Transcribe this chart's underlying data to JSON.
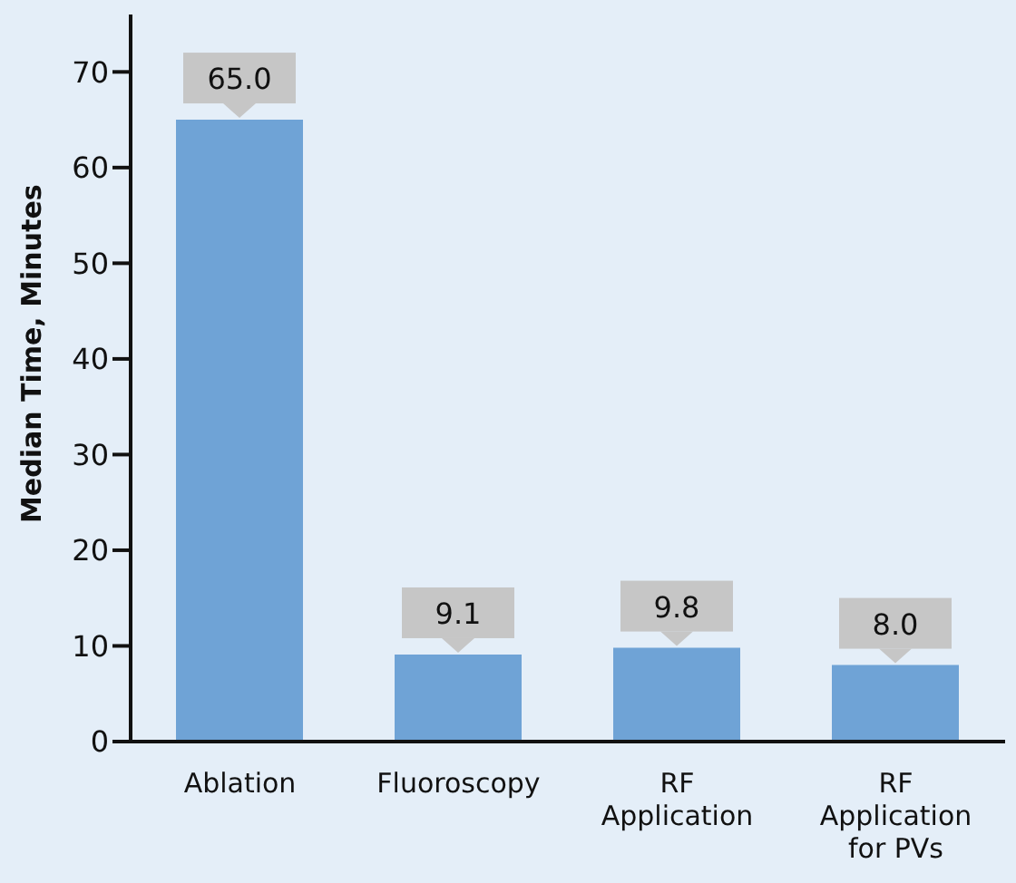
{
  "chart_data": {
    "type": "bar",
    "ylabel": "Median Time, Minutes",
    "categories": [
      "Ablation",
      "Fluoroscopy",
      "RF Application",
      "RF Application for PVs"
    ],
    "values": [
      65,
      9.1,
      9.8,
      8
    ],
    "value_labels": [
      "65.0",
      "9.1",
      "9.8",
      "8.0"
    ],
    "color": "#6fa3d6",
    "ylim": [
      0,
      76
    ],
    "yticks": [
      0,
      10,
      20,
      30,
      40,
      50,
      60,
      70
    ],
    "grid": false,
    "legend": false
  }
}
